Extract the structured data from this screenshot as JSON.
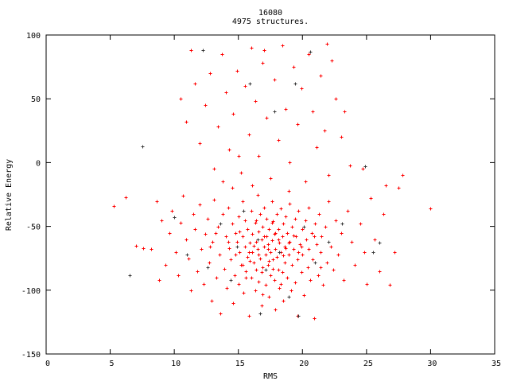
{
  "chart_data": {
    "type": "scatter",
    "title": "16080",
    "subtitle": "4975 structures.",
    "xlabel": "RMS",
    "ylabel": "Relative Energy",
    "xlim": [
      0,
      35
    ],
    "ylim": [
      -150,
      100
    ],
    "xticks": [
      0,
      5,
      10,
      15,
      20,
      25,
      30,
      35
    ],
    "yticks": [
      -150,
      -100,
      -50,
      0,
      50,
      100
    ],
    "grid": false,
    "marker": "plus",
    "series": [
      {
        "color": "#ff0000",
        "points": [
          [
            5.3,
            -34
          ],
          [
            6.2,
            -27
          ],
          [
            7.0,
            -65
          ],
          [
            7.6,
            -67
          ],
          [
            8.2,
            -68
          ],
          [
            8.6,
            -30
          ],
          [
            8.8,
            -92
          ],
          [
            9.0,
            -45
          ],
          [
            9.3,
            -80
          ],
          [
            9.6,
            -55
          ],
          [
            9.8,
            -38
          ],
          [
            10.1,
            -70
          ],
          [
            10.3,
            -88
          ],
          [
            10.5,
            -47
          ],
          [
            10.7,
            -26
          ],
          [
            10.9,
            -60
          ],
          [
            11.1,
            -75
          ],
          [
            11.3,
            -100
          ],
          [
            11.5,
            -40
          ],
          [
            11.6,
            -52
          ],
          [
            11.8,
            -85
          ],
          [
            12.0,
            -33
          ],
          [
            12.1,
            -68
          ],
          [
            12.3,
            -95
          ],
          [
            12.4,
            -56
          ],
          [
            12.6,
            -44
          ],
          [
            12.7,
            -78
          ],
          [
            12.9,
            -108
          ],
          [
            13.0,
            -62
          ],
          [
            13.1,
            -29
          ],
          [
            13.3,
            -90
          ],
          [
            13.4,
            -50
          ],
          [
            13.5,
            -72
          ],
          [
            13.6,
            -118
          ],
          [
            13.8,
            -40
          ],
          [
            13.9,
            -83
          ],
          [
            14.0,
            -58
          ],
          [
            14.1,
            -98
          ],
          [
            14.2,
            -35
          ],
          [
            14.3,
            -67
          ],
          [
            14.4,
            -76
          ],
          [
            14.5,
            -48
          ],
          [
            14.6,
            -110
          ],
          [
            14.7,
            -88
          ],
          [
            14.8,
            -55
          ],
          [
            14.9,
            -62
          ],
          [
            15.0,
            -42
          ],
          [
            15.0,
            -95
          ],
          [
            15.1,
            -70
          ],
          [
            15.2,
            -80
          ],
          [
            15.3,
            -30
          ],
          [
            15.3,
            -58
          ],
          [
            15.4,
            -102
          ],
          [
            15.5,
            -66
          ],
          [
            15.5,
            -45
          ],
          [
            15.6,
            -85
          ],
          [
            15.7,
            -74
          ],
          [
            15.7,
            -52
          ],
          [
            15.8,
            -120
          ],
          [
            15.9,
            -63
          ],
          [
            16.0,
            -38
          ],
          [
            16.0,
            -90
          ],
          [
            16.1,
            -70
          ],
          [
            16.1,
            -56
          ],
          [
            16.2,
            -78
          ],
          [
            16.3,
            -47
          ],
          [
            16.3,
            -100
          ],
          [
            16.4,
            -62
          ],
          [
            16.4,
            -84
          ],
          [
            16.5,
            -25
          ],
          [
            16.5,
            -68
          ],
          [
            16.6,
            -54
          ],
          [
            16.6,
            -93
          ],
          [
            16.7,
            -75
          ],
          [
            16.7,
            -40
          ],
          [
            16.8,
            -60
          ],
          [
            16.8,
            -112
          ],
          [
            16.9,
            -82
          ],
          [
            16.9,
            -50
          ],
          [
            17.0,
            -66
          ],
          [
            17.0,
            -35
          ],
          [
            17.1,
            -72
          ],
          [
            17.1,
            -96
          ],
          [
            17.2,
            -58
          ],
          [
            17.2,
            -44
          ],
          [
            17.3,
            -80
          ],
          [
            17.3,
            -64
          ],
          [
            17.4,
            -105
          ],
          [
            17.4,
            -52
          ],
          [
            17.5,
            -70
          ],
          [
            17.5,
            -88
          ],
          [
            17.6,
            -30
          ],
          [
            17.6,
            -61
          ],
          [
            17.7,
            -76
          ],
          [
            17.7,
            -46
          ],
          [
            17.8,
            -92
          ],
          [
            17.8,
            -56
          ],
          [
            17.9,
            -68
          ],
          [
            17.9,
            -115
          ],
          [
            18.0,
            -40
          ],
          [
            18.0,
            -74
          ],
          [
            18.1,
            -84
          ],
          [
            18.1,
            -52
          ],
          [
            18.2,
            -63
          ],
          [
            18.2,
            -98
          ],
          [
            18.3,
            -36
          ],
          [
            18.3,
            -70
          ],
          [
            18.4,
            -58
          ],
          [
            18.4,
            -86
          ],
          [
            18.5,
            -48
          ],
          [
            18.5,
            -108
          ],
          [
            18.6,
            -66
          ],
          [
            18.6,
            -78
          ],
          [
            18.7,
            -42
          ],
          [
            18.8,
            -90
          ],
          [
            18.8,
            -55
          ],
          [
            18.9,
            -72
          ],
          [
            19.0,
            -32
          ],
          [
            19.0,
            -62
          ],
          [
            19.1,
            -100
          ],
          [
            19.2,
            -80
          ],
          [
            19.2,
            -50
          ],
          [
            19.3,
            -68
          ],
          [
            19.4,
            -44
          ],
          [
            19.4,
            -94
          ],
          [
            19.5,
            -58
          ],
          [
            19.6,
            -76
          ],
          [
            19.6,
            -120
          ],
          [
            19.7,
            -38
          ],
          [
            19.8,
            -64
          ],
          [
            19.9,
            -86
          ],
          [
            20.0,
            -52
          ],
          [
            20.0,
            -72
          ],
          [
            20.1,
            -104
          ],
          [
            20.2,
            -45
          ],
          [
            20.3,
            -60
          ],
          [
            20.4,
            -82
          ],
          [
            20.5,
            -35
          ],
          [
            20.5,
            -68
          ],
          [
            20.6,
            -92
          ],
          [
            20.7,
            -55
          ],
          [
            20.8,
            -76
          ],
          [
            20.9,
            -122
          ],
          [
            21.0,
            -48
          ],
          [
            21.1,
            -64
          ],
          [
            21.2,
            -88
          ],
          [
            21.3,
            -40
          ],
          [
            21.4,
            -70
          ],
          [
            21.5,
            -58
          ],
          [
            21.6,
            -96
          ],
          [
            21.8,
            -50
          ],
          [
            21.9,
            -78
          ],
          [
            22.0,
            -30
          ],
          [
            22.2,
            -66
          ],
          [
            22.4,
            -84
          ],
          [
            22.6,
            -45
          ],
          [
            22.8,
            -72
          ],
          [
            23.0,
            -55
          ],
          [
            23.2,
            -92
          ],
          [
            23.5,
            -38
          ],
          [
            23.8,
            -62
          ],
          [
            24.1,
            -80
          ],
          [
            24.5,
            -48
          ],
          [
            24.8,
            -70
          ],
          [
            25.0,
            -95
          ],
          [
            25.3,
            -28
          ],
          [
            25.6,
            -60
          ],
          [
            26.0,
            -85
          ],
          [
            26.3,
            -40
          ],
          [
            26.8,
            -96
          ],
          [
            27.2,
            -70
          ],
          [
            27.5,
            -20
          ],
          [
            27.8,
            -10
          ],
          [
            30.0,
            -36
          ],
          [
            26.5,
            -18
          ],
          [
            24.7,
            -5
          ],
          [
            14.2,
            -62
          ],
          [
            15.1,
            -54
          ],
          [
            15.9,
            -77
          ],
          [
            16.2,
            -65
          ],
          [
            16.6,
            -72
          ],
          [
            17.0,
            -58
          ],
          [
            17.3,
            -68
          ],
          [
            17.7,
            -83
          ],
          [
            18.1,
            -60
          ],
          [
            18.5,
            -73
          ],
          [
            18.9,
            -63
          ],
          [
            19.3,
            -57
          ],
          [
            19.7,
            -70
          ],
          [
            16.4,
            -45
          ],
          [
            17.6,
            -47
          ],
          [
            15.6,
            -90
          ],
          [
            18.3,
            -95
          ],
          [
            16.9,
            -103
          ],
          [
            14.8,
            -72
          ],
          [
            19.9,
            -66
          ],
          [
            13.2,
            -55
          ],
          [
            12.8,
            -66
          ],
          [
            20.9,
            -58
          ],
          [
            21.4,
            -82
          ],
          [
            15.3,
            -80
          ],
          [
            17.4,
            -77
          ],
          [
            18.7,
            -67
          ],
          [
            16.8,
            -86
          ],
          [
            15.8,
            -70
          ],
          [
            17.9,
            -55
          ],
          [
            10.5,
            50
          ],
          [
            10.9,
            32
          ],
          [
            11.3,
            88
          ],
          [
            11.6,
            62
          ],
          [
            12.0,
            15
          ],
          [
            12.4,
            45
          ],
          [
            12.8,
            70
          ],
          [
            13.1,
            -5
          ],
          [
            13.4,
            28
          ],
          [
            13.7,
            85
          ],
          [
            14.0,
            55
          ],
          [
            14.3,
            10
          ],
          [
            14.6,
            38
          ],
          [
            14.9,
            72
          ],
          [
            15.2,
            -8
          ],
          [
            15.5,
            60
          ],
          [
            15.8,
            22
          ],
          [
            16.0,
            90
          ],
          [
            16.3,
            48
          ],
          [
            16.6,
            5
          ],
          [
            16.9,
            78
          ],
          [
            17.2,
            35
          ],
          [
            17.5,
            -12
          ],
          [
            17.8,
            65
          ],
          [
            18.1,
            18
          ],
          [
            18.4,
            92
          ],
          [
            18.7,
            42
          ],
          [
            19.0,
            0
          ],
          [
            19.3,
            75
          ],
          [
            19.6,
            30
          ],
          [
            19.9,
            58
          ],
          [
            20.2,
            -15
          ],
          [
            20.5,
            85
          ],
          [
            20.8,
            40
          ],
          [
            21.1,
            12
          ],
          [
            21.4,
            68
          ],
          [
            21.7,
            25
          ],
          [
            22.0,
            -10
          ],
          [
            22.3,
            80
          ],
          [
            22.6,
            50
          ],
          [
            23.0,
            20
          ],
          [
            23.3,
            40
          ],
          [
            23.7,
            -2
          ],
          [
            21.9,
            93
          ],
          [
            17.0,
            88
          ],
          [
            15.0,
            5
          ],
          [
            14.5,
            -20
          ],
          [
            16.1,
            -18
          ],
          [
            18.9,
            -22
          ],
          [
            13.8,
            -15
          ]
        ]
      },
      {
        "color": "#3a3a3a",
        "points": [
          [
            6.5,
            -88
          ],
          [
            7.5,
            13
          ],
          [
            10.0,
            -43
          ],
          [
            11.0,
            -72
          ],
          [
            12.2,
            88
          ],
          [
            13.6,
            -48
          ],
          [
            14.4,
            -92
          ],
          [
            15.4,
            -38
          ],
          [
            15.9,
            62
          ],
          [
            16.5,
            -60
          ],
          [
            17.1,
            -84
          ],
          [
            17.8,
            40
          ],
          [
            18.2,
            -70
          ],
          [
            18.9,
            -105
          ],
          [
            19.4,
            62
          ],
          [
            20.1,
            -50
          ],
          [
            20.6,
            87
          ],
          [
            21.0,
            -78
          ],
          [
            22.0,
            -62
          ],
          [
            23.1,
            -48
          ],
          [
            24.9,
            -3
          ],
          [
            25.5,
            -70
          ],
          [
            26.0,
            -63
          ],
          [
            12.6,
            -82
          ],
          [
            14.9,
            -66
          ],
          [
            16.7,
            -118
          ],
          [
            19.7,
            -120
          ]
        ]
      }
    ]
  }
}
